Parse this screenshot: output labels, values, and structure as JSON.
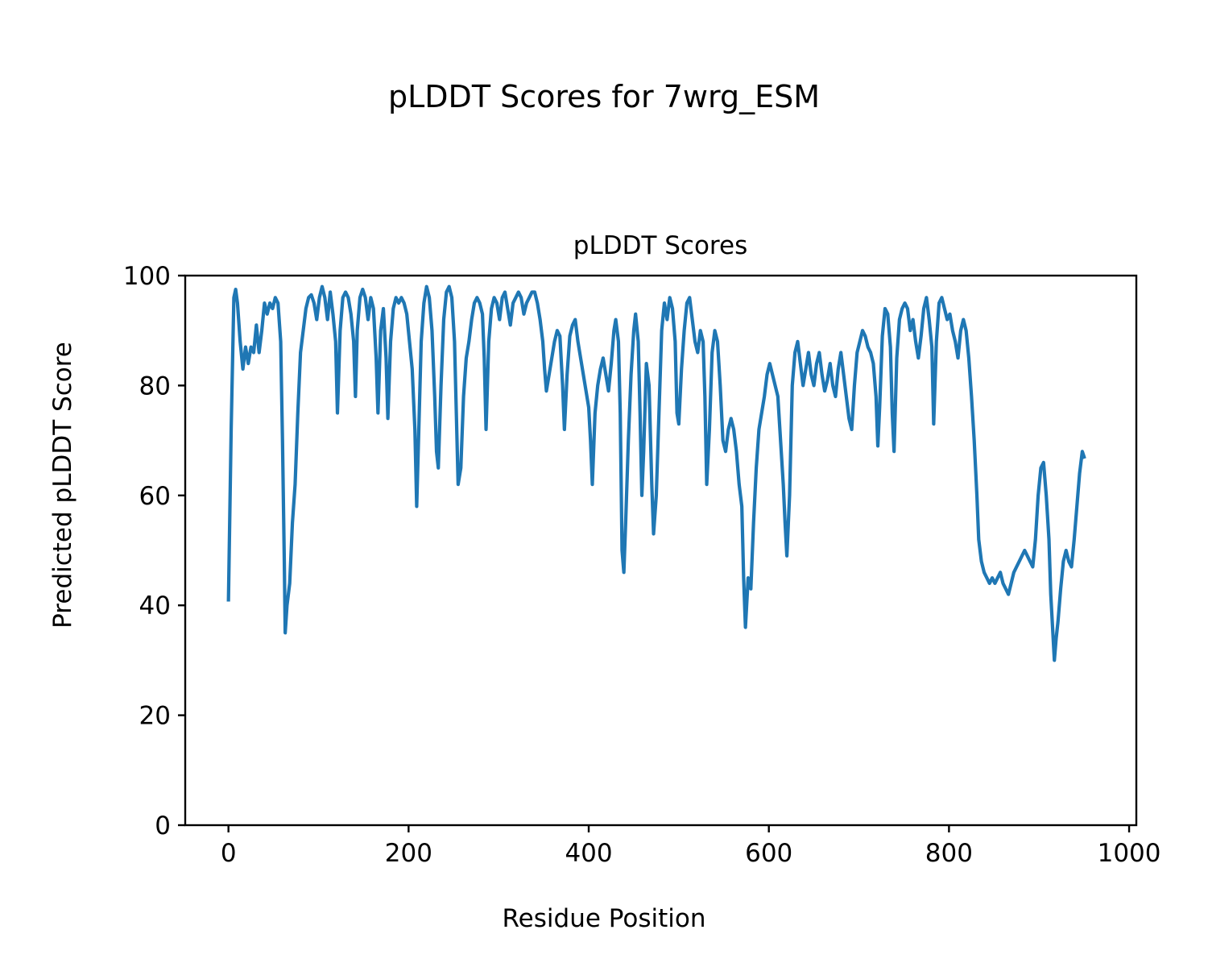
{
  "figure": {
    "suptitle": "pLDDT Scores for 7wrg_ESM"
  },
  "chart_data": {
    "type": "line",
    "title": "pLDDT Scores",
    "xlabel": "Residue Position",
    "ylabel": "Predicted pLDDT Score",
    "xlim": [
      -48,
      1008
    ],
    "ylim": [
      0,
      100
    ],
    "xticks": [
      0,
      200,
      400,
      600,
      800,
      1000
    ],
    "yticks": [
      0,
      20,
      40,
      60,
      80,
      100
    ],
    "grid": false,
    "legend": "none",
    "series": [
      {
        "color": "#1f77b4",
        "points": [
          [
            0,
            41
          ],
          [
            3,
            72
          ],
          [
            6,
            96
          ],
          [
            8,
            97.5
          ],
          [
            10,
            95
          ],
          [
            13,
            88
          ],
          [
            16,
            83
          ],
          [
            19,
            87
          ],
          [
            22,
            84
          ],
          [
            25,
            87
          ],
          [
            28,
            86
          ],
          [
            31,
            91
          ],
          [
            34,
            86
          ],
          [
            37,
            90
          ],
          [
            40,
            95
          ],
          [
            43,
            93
          ],
          [
            46,
            95
          ],
          [
            49,
            94
          ],
          [
            52,
            96
          ],
          [
            55,
            95
          ],
          [
            58,
            88
          ],
          [
            60,
            70
          ],
          [
            62,
            48
          ],
          [
            63,
            35
          ],
          [
            65,
            40
          ],
          [
            68,
            44
          ],
          [
            71,
            55
          ],
          [
            74,
            62
          ],
          [
            77,
            75
          ],
          [
            80,
            86
          ],
          [
            83,
            90
          ],
          [
            86,
            94
          ],
          [
            89,
            96
          ],
          [
            92,
            96.5
          ],
          [
            95,
            95
          ],
          [
            98,
            92
          ],
          [
            101,
            96
          ],
          [
            104,
            98
          ],
          [
            107,
            96
          ],
          [
            110,
            92
          ],
          [
            113,
            97
          ],
          [
            116,
            93
          ],
          [
            119,
            88
          ],
          [
            121,
            75
          ],
          [
            124,
            90
          ],
          [
            127,
            96
          ],
          [
            130,
            97
          ],
          [
            133,
            96
          ],
          [
            136,
            93
          ],
          [
            139,
            88
          ],
          [
            141,
            78
          ],
          [
            143,
            90
          ],
          [
            146,
            96
          ],
          [
            149,
            97.5
          ],
          [
            152,
            96
          ],
          [
            155,
            92
          ],
          [
            158,
            96
          ],
          [
            161,
            94
          ],
          [
            164,
            85
          ],
          [
            166,
            75
          ],
          [
            169,
            90
          ],
          [
            172,
            94
          ],
          [
            175,
            85
          ],
          [
            177,
            74
          ],
          [
            180,
            88
          ],
          [
            183,
            94
          ],
          [
            186,
            96
          ],
          [
            189,
            95
          ],
          [
            192,
            96
          ],
          [
            195,
            95
          ],
          [
            198,
            93
          ],
          [
            201,
            88
          ],
          [
            204,
            83
          ],
          [
            207,
            72
          ],
          [
            209,
            58
          ],
          [
            211,
            70
          ],
          [
            214,
            88
          ],
          [
            217,
            95
          ],
          [
            220,
            98
          ],
          [
            223,
            96
          ],
          [
            226,
            90
          ],
          [
            229,
            78
          ],
          [
            231,
            68
          ],
          [
            233,
            65
          ],
          [
            236,
            80
          ],
          [
            239,
            92
          ],
          [
            242,
            97
          ],
          [
            245,
            98
          ],
          [
            248,
            96
          ],
          [
            251,
            88
          ],
          [
            253,
            75
          ],
          [
            255,
            62
          ],
          [
            258,
            65
          ],
          [
            261,
            78
          ],
          [
            264,
            85
          ],
          [
            267,
            88
          ],
          [
            270,
            92
          ],
          [
            273,
            95
          ],
          [
            276,
            96
          ],
          [
            279,
            95
          ],
          [
            282,
            93
          ],
          [
            284,
            85
          ],
          [
            286,
            72
          ],
          [
            289,
            88
          ],
          [
            292,
            94
          ],
          [
            295,
            96
          ],
          [
            298,
            95
          ],
          [
            301,
            92
          ],
          [
            304,
            96
          ],
          [
            307,
            97
          ],
          [
            310,
            94
          ],
          [
            313,
            91
          ],
          [
            316,
            95
          ],
          [
            319,
            96
          ],
          [
            322,
            97
          ],
          [
            325,
            96
          ],
          [
            328,
            93
          ],
          [
            331,
            95
          ],
          [
            334,
            96
          ],
          [
            337,
            97
          ],
          [
            340,
            97
          ],
          [
            343,
            95
          ],
          [
            346,
            92
          ],
          [
            349,
            88
          ],
          [
            351,
            83
          ],
          [
            353,
            79
          ],
          [
            356,
            82
          ],
          [
            359,
            85
          ],
          [
            362,
            88
          ],
          [
            365,
            90
          ],
          [
            368,
            89
          ],
          [
            371,
            80
          ],
          [
            373,
            72
          ],
          [
            376,
            82
          ],
          [
            379,
            89
          ],
          [
            382,
            91
          ],
          [
            385,
            92
          ],
          [
            388,
            88
          ],
          [
            391,
            85
          ],
          [
            394,
            82
          ],
          [
            397,
            79
          ],
          [
            400,
            76
          ],
          [
            402,
            70
          ],
          [
            404,
            62
          ],
          [
            407,
            75
          ],
          [
            410,
            80
          ],
          [
            413,
            83
          ],
          [
            416,
            85
          ],
          [
            419,
            82
          ],
          [
            422,
            79
          ],
          [
            425,
            84
          ],
          [
            428,
            90
          ],
          [
            430,
            92
          ],
          [
            433,
            88
          ],
          [
            435,
            75
          ],
          [
            437,
            50
          ],
          [
            439,
            46
          ],
          [
            441,
            55
          ],
          [
            444,
            70
          ],
          [
            447,
            82
          ],
          [
            450,
            90
          ],
          [
            452,
            93
          ],
          [
            455,
            88
          ],
          [
            457,
            75
          ],
          [
            459,
            60
          ],
          [
            461,
            68
          ],
          [
            464,
            84
          ],
          [
            467,
            80
          ],
          [
            470,
            62
          ],
          [
            472,
            53
          ],
          [
            475,
            60
          ],
          [
            478,
            75
          ],
          [
            481,
            90
          ],
          [
            484,
            95
          ],
          [
            487,
            92
          ],
          [
            490,
            96
          ],
          [
            493,
            94
          ],
          [
            496,
            88
          ],
          [
            498,
            75
          ],
          [
            500,
            73
          ],
          [
            503,
            83
          ],
          [
            506,
            90
          ],
          [
            509,
            95
          ],
          [
            512,
            96
          ],
          [
            515,
            92
          ],
          [
            518,
            88
          ],
          [
            521,
            86
          ],
          [
            524,
            90
          ],
          [
            527,
            88
          ],
          [
            529,
            78
          ],
          [
            531,
            62
          ],
          [
            534,
            72
          ],
          [
            537,
            86
          ],
          [
            540,
            90
          ],
          [
            543,
            88
          ],
          [
            546,
            80
          ],
          [
            549,
            70
          ],
          [
            552,
            68
          ],
          [
            555,
            72
          ],
          [
            558,
            74
          ],
          [
            561,
            72
          ],
          [
            564,
            68
          ],
          [
            567,
            62
          ],
          [
            570,
            58
          ],
          [
            572,
            45
          ],
          [
            574,
            36
          ],
          [
            577,
            45
          ],
          [
            580,
            43
          ],
          [
            583,
            55
          ],
          [
            586,
            65
          ],
          [
            589,
            72
          ],
          [
            592,
            75
          ],
          [
            595,
            78
          ],
          [
            598,
            82
          ],
          [
            601,
            84
          ],
          [
            604,
            82
          ],
          [
            607,
            80
          ],
          [
            610,
            78
          ],
          [
            613,
            70
          ],
          [
            616,
            62
          ],
          [
            618,
            55
          ],
          [
            620,
            49
          ],
          [
            623,
            60
          ],
          [
            626,
            80
          ],
          [
            629,
            86
          ],
          [
            632,
            88
          ],
          [
            635,
            84
          ],
          [
            638,
            80
          ],
          [
            641,
            83
          ],
          [
            644,
            86
          ],
          [
            647,
            82
          ],
          [
            650,
            80
          ],
          [
            653,
            84
          ],
          [
            656,
            86
          ],
          [
            659,
            82
          ],
          [
            662,
            79
          ],
          [
            665,
            81
          ],
          [
            668,
            84
          ],
          [
            671,
            80
          ],
          [
            674,
            78
          ],
          [
            677,
            83
          ],
          [
            680,
            86
          ],
          [
            683,
            82
          ],
          [
            686,
            78
          ],
          [
            689,
            74
          ],
          [
            692,
            72
          ],
          [
            695,
            80
          ],
          [
            698,
            86
          ],
          [
            701,
            88
          ],
          [
            704,
            90
          ],
          [
            707,
            89
          ],
          [
            710,
            87
          ],
          [
            713,
            86
          ],
          [
            716,
            84
          ],
          [
            719,
            78
          ],
          [
            721,
            69
          ],
          [
            723,
            76
          ],
          [
            726,
            89
          ],
          [
            729,
            94
          ],
          [
            732,
            93
          ],
          [
            735,
            87
          ],
          [
            737,
            75
          ],
          [
            739,
            68
          ],
          [
            742,
            85
          ],
          [
            745,
            92
          ],
          [
            748,
            94
          ],
          [
            751,
            95
          ],
          [
            754,
            94
          ],
          [
            757,
            90
          ],
          [
            760,
            92
          ],
          [
            763,
            88
          ],
          [
            766,
            85
          ],
          [
            769,
            89
          ],
          [
            772,
            94
          ],
          [
            775,
            96
          ],
          [
            778,
            92
          ],
          [
            781,
            87
          ],
          [
            783,
            73
          ],
          [
            786,
            88
          ],
          [
            789,
            95
          ],
          [
            792,
            96
          ],
          [
            795,
            94
          ],
          [
            798,
            92
          ],
          [
            801,
            93
          ],
          [
            804,
            90
          ],
          [
            807,
            88
          ],
          [
            810,
            85
          ],
          [
            813,
            90
          ],
          [
            816,
            92
          ],
          [
            819,
            90
          ],
          [
            822,
            85
          ],
          [
            825,
            78
          ],
          [
            828,
            70
          ],
          [
            831,
            60
          ],
          [
            833,
            52
          ],
          [
            836,
            48
          ],
          [
            839,
            46
          ],
          [
            842,
            45
          ],
          [
            845,
            44
          ],
          [
            848,
            45
          ],
          [
            851,
            44
          ],
          [
            854,
            45
          ],
          [
            857,
            46
          ],
          [
            860,
            44
          ],
          [
            863,
            43
          ],
          [
            866,
            42
          ],
          [
            869,
            44
          ],
          [
            872,
            46
          ],
          [
            875,
            47
          ],
          [
            878,
            48
          ],
          [
            881,
            49
          ],
          [
            884,
            50
          ],
          [
            887,
            49
          ],
          [
            890,
            48
          ],
          [
            893,
            47
          ],
          [
            896,
            52
          ],
          [
            899,
            60
          ],
          [
            902,
            65
          ],
          [
            905,
            66
          ],
          [
            908,
            60
          ],
          [
            911,
            52
          ],
          [
            913,
            42
          ],
          [
            915,
            36
          ],
          [
            917,
            30
          ],
          [
            919,
            34
          ],
          [
            921,
            37
          ],
          [
            924,
            43
          ],
          [
            927,
            48
          ],
          [
            930,
            50
          ],
          [
            933,
            48
          ],
          [
            936,
            47
          ],
          [
            939,
            52
          ],
          [
            942,
            58
          ],
          [
            945,
            64
          ],
          [
            948,
            68
          ],
          [
            950,
            67
          ]
        ]
      }
    ]
  }
}
